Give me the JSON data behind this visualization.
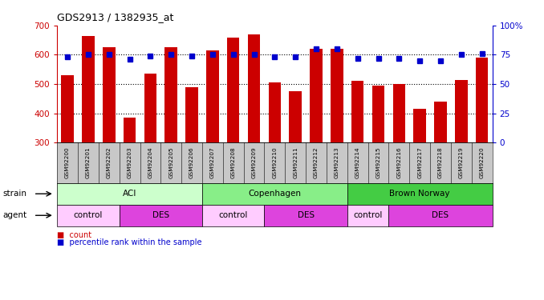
{
  "title": "GDS2913 / 1382935_at",
  "samples": [
    "GSM92200",
    "GSM92201",
    "GSM92202",
    "GSM92203",
    "GSM92204",
    "GSM92205",
    "GSM92206",
    "GSM92207",
    "GSM92208",
    "GSM92209",
    "GSM92210",
    "GSM92211",
    "GSM92212",
    "GSM92213",
    "GSM92214",
    "GSM92215",
    "GSM92216",
    "GSM92217",
    "GSM92218",
    "GSM92219",
    "GSM92220"
  ],
  "bar_values": [
    530,
    665,
    625,
    385,
    535,
    625,
    490,
    615,
    660,
    670,
    505,
    475,
    620,
    620,
    510,
    495,
    500,
    415,
    440,
    515,
    590
  ],
  "percentile_values": [
    73,
    75,
    75,
    71,
    74,
    75,
    74,
    75,
    75,
    75,
    73,
    73,
    80,
    80,
    72,
    72,
    72,
    70,
    70,
    75,
    76
  ],
  "ylim_left": [
    300,
    700
  ],
  "ylim_right": [
    0,
    100
  ],
  "yticks_left": [
    300,
    400,
    500,
    600,
    700
  ],
  "yticks_right": [
    0,
    25,
    50,
    75,
    100
  ],
  "bar_color": "#cc0000",
  "percentile_color": "#0000cc",
  "bar_bottom": 300,
  "strain_groups": [
    {
      "label": "ACI",
      "start": 0,
      "end": 6,
      "color": "#ccffcc"
    },
    {
      "label": "Copenhagen",
      "start": 7,
      "end": 13,
      "color": "#88ee88"
    },
    {
      "label": "Brown Norway",
      "start": 14,
      "end": 20,
      "color": "#44cc44"
    }
  ],
  "agent_groups": [
    {
      "label": "control",
      "start": 0,
      "end": 2,
      "color": "#ffccff"
    },
    {
      "label": "DES",
      "start": 3,
      "end": 6,
      "color": "#dd44dd"
    },
    {
      "label": "control",
      "start": 7,
      "end": 9,
      "color": "#ffccff"
    },
    {
      "label": "DES",
      "start": 10,
      "end": 13,
      "color": "#dd44dd"
    },
    {
      "label": "control",
      "start": 14,
      "end": 15,
      "color": "#ffccff"
    },
    {
      "label": "DES",
      "start": 16,
      "end": 20,
      "color": "#dd44dd"
    }
  ],
  "grid_lines": [
    400,
    500,
    600
  ],
  "bar_color_legend": "#cc0000",
  "pct_color_legend": "#0000cc",
  "tick_bg_color": "#c8c8c8"
}
